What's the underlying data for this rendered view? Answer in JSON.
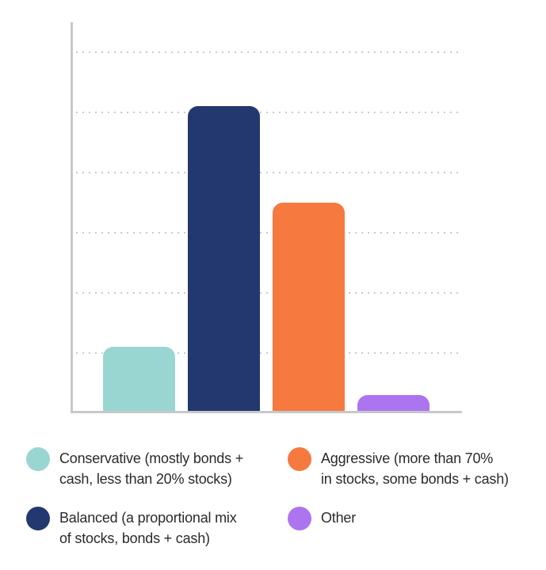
{
  "chart_data": {
    "type": "bar",
    "title": "",
    "xlabel": "",
    "ylabel": "",
    "categories": [
      "Conservative",
      "Balanced",
      "Aggressive",
      "Other"
    ],
    "values": [
      11,
      51,
      35,
      3
    ],
    "unit": "percent",
    "colors": [
      "#9AD6D1",
      "#22386E",
      "#F6793F",
      "#AD74F0"
    ],
    "ylim": [
      0,
      65
    ],
    "gridline_step": 10,
    "gridline_max": 60,
    "grid": "horizontal-dotted",
    "axis_labels_visible": false,
    "legend_position": "bottom"
  },
  "legend": {
    "items": [
      {
        "name": "conservative",
        "color": "#9AD6D1",
        "lines": [
          "Conservative (mostly bonds +",
          "cash, less than 20% stocks)"
        ]
      },
      {
        "name": "aggressive",
        "color": "#F6793F",
        "lines": [
          "Aggressive (more than 70%",
          "in stocks, some bonds + cash)"
        ]
      },
      {
        "name": "balanced",
        "color": "#22386E",
        "lines": [
          "Balanced (a proportional mix",
          "of stocks, bonds + cash)"
        ]
      },
      {
        "name": "other",
        "color": "#AD74F0",
        "lines": [
          "Other"
        ]
      }
    ]
  },
  "colors": {
    "background": "#FFFFFF",
    "axis": "#C6C8CA",
    "grid_dot": "#C9CBCC",
    "text": "#2B2B2B"
  }
}
